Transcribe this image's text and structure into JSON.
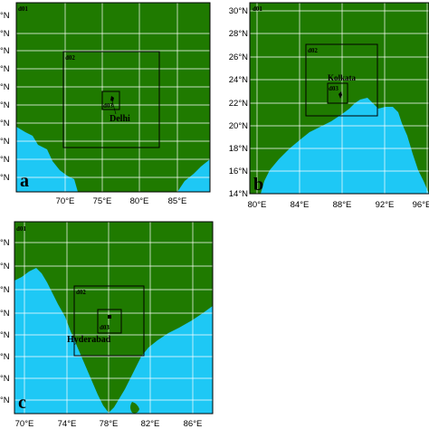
{
  "colors": {
    "land": "#1f7a00",
    "sea": "#1ec8f5",
    "grid": "#ffffff",
    "frame": "#000000"
  },
  "panels": [
    {
      "id": "a",
      "label": "a",
      "city": "Delhi",
      "domains": [
        "d01",
        "d02",
        "d03"
      ],
      "lat_ticks": [
        "°N",
        "°N",
        "°N",
        "°N",
        "°N",
        "°N",
        "°N",
        "°N",
        "°N",
        "°N"
      ],
      "lon_ticks": [
        "70°E",
        "75°E",
        "80°E",
        "85°E"
      ]
    },
    {
      "id": "b",
      "label": "b",
      "city": "Kolkata",
      "domains": [
        "d01",
        "d02",
        "d03"
      ],
      "lat_ticks": [
        "30°N",
        "28°N",
        "26°N",
        "24°N",
        "22°N",
        "20°N",
        "18°N",
        "16°N",
        "14°N"
      ],
      "lon_ticks": [
        "80°E",
        "84°E",
        "88°E",
        "92°E",
        "96°E"
      ]
    },
    {
      "id": "c",
      "label": "c",
      "city": "Hyderabad",
      "domains": [
        "d01",
        "d02",
        "d03"
      ],
      "lat_ticks": [
        "°N",
        "°N",
        "°N",
        "°N",
        "°N",
        "°N",
        "°N",
        "°N"
      ],
      "lon_ticks": [
        "70°E",
        "74°E",
        "78°E",
        "82°E",
        "86°E"
      ]
    }
  ]
}
